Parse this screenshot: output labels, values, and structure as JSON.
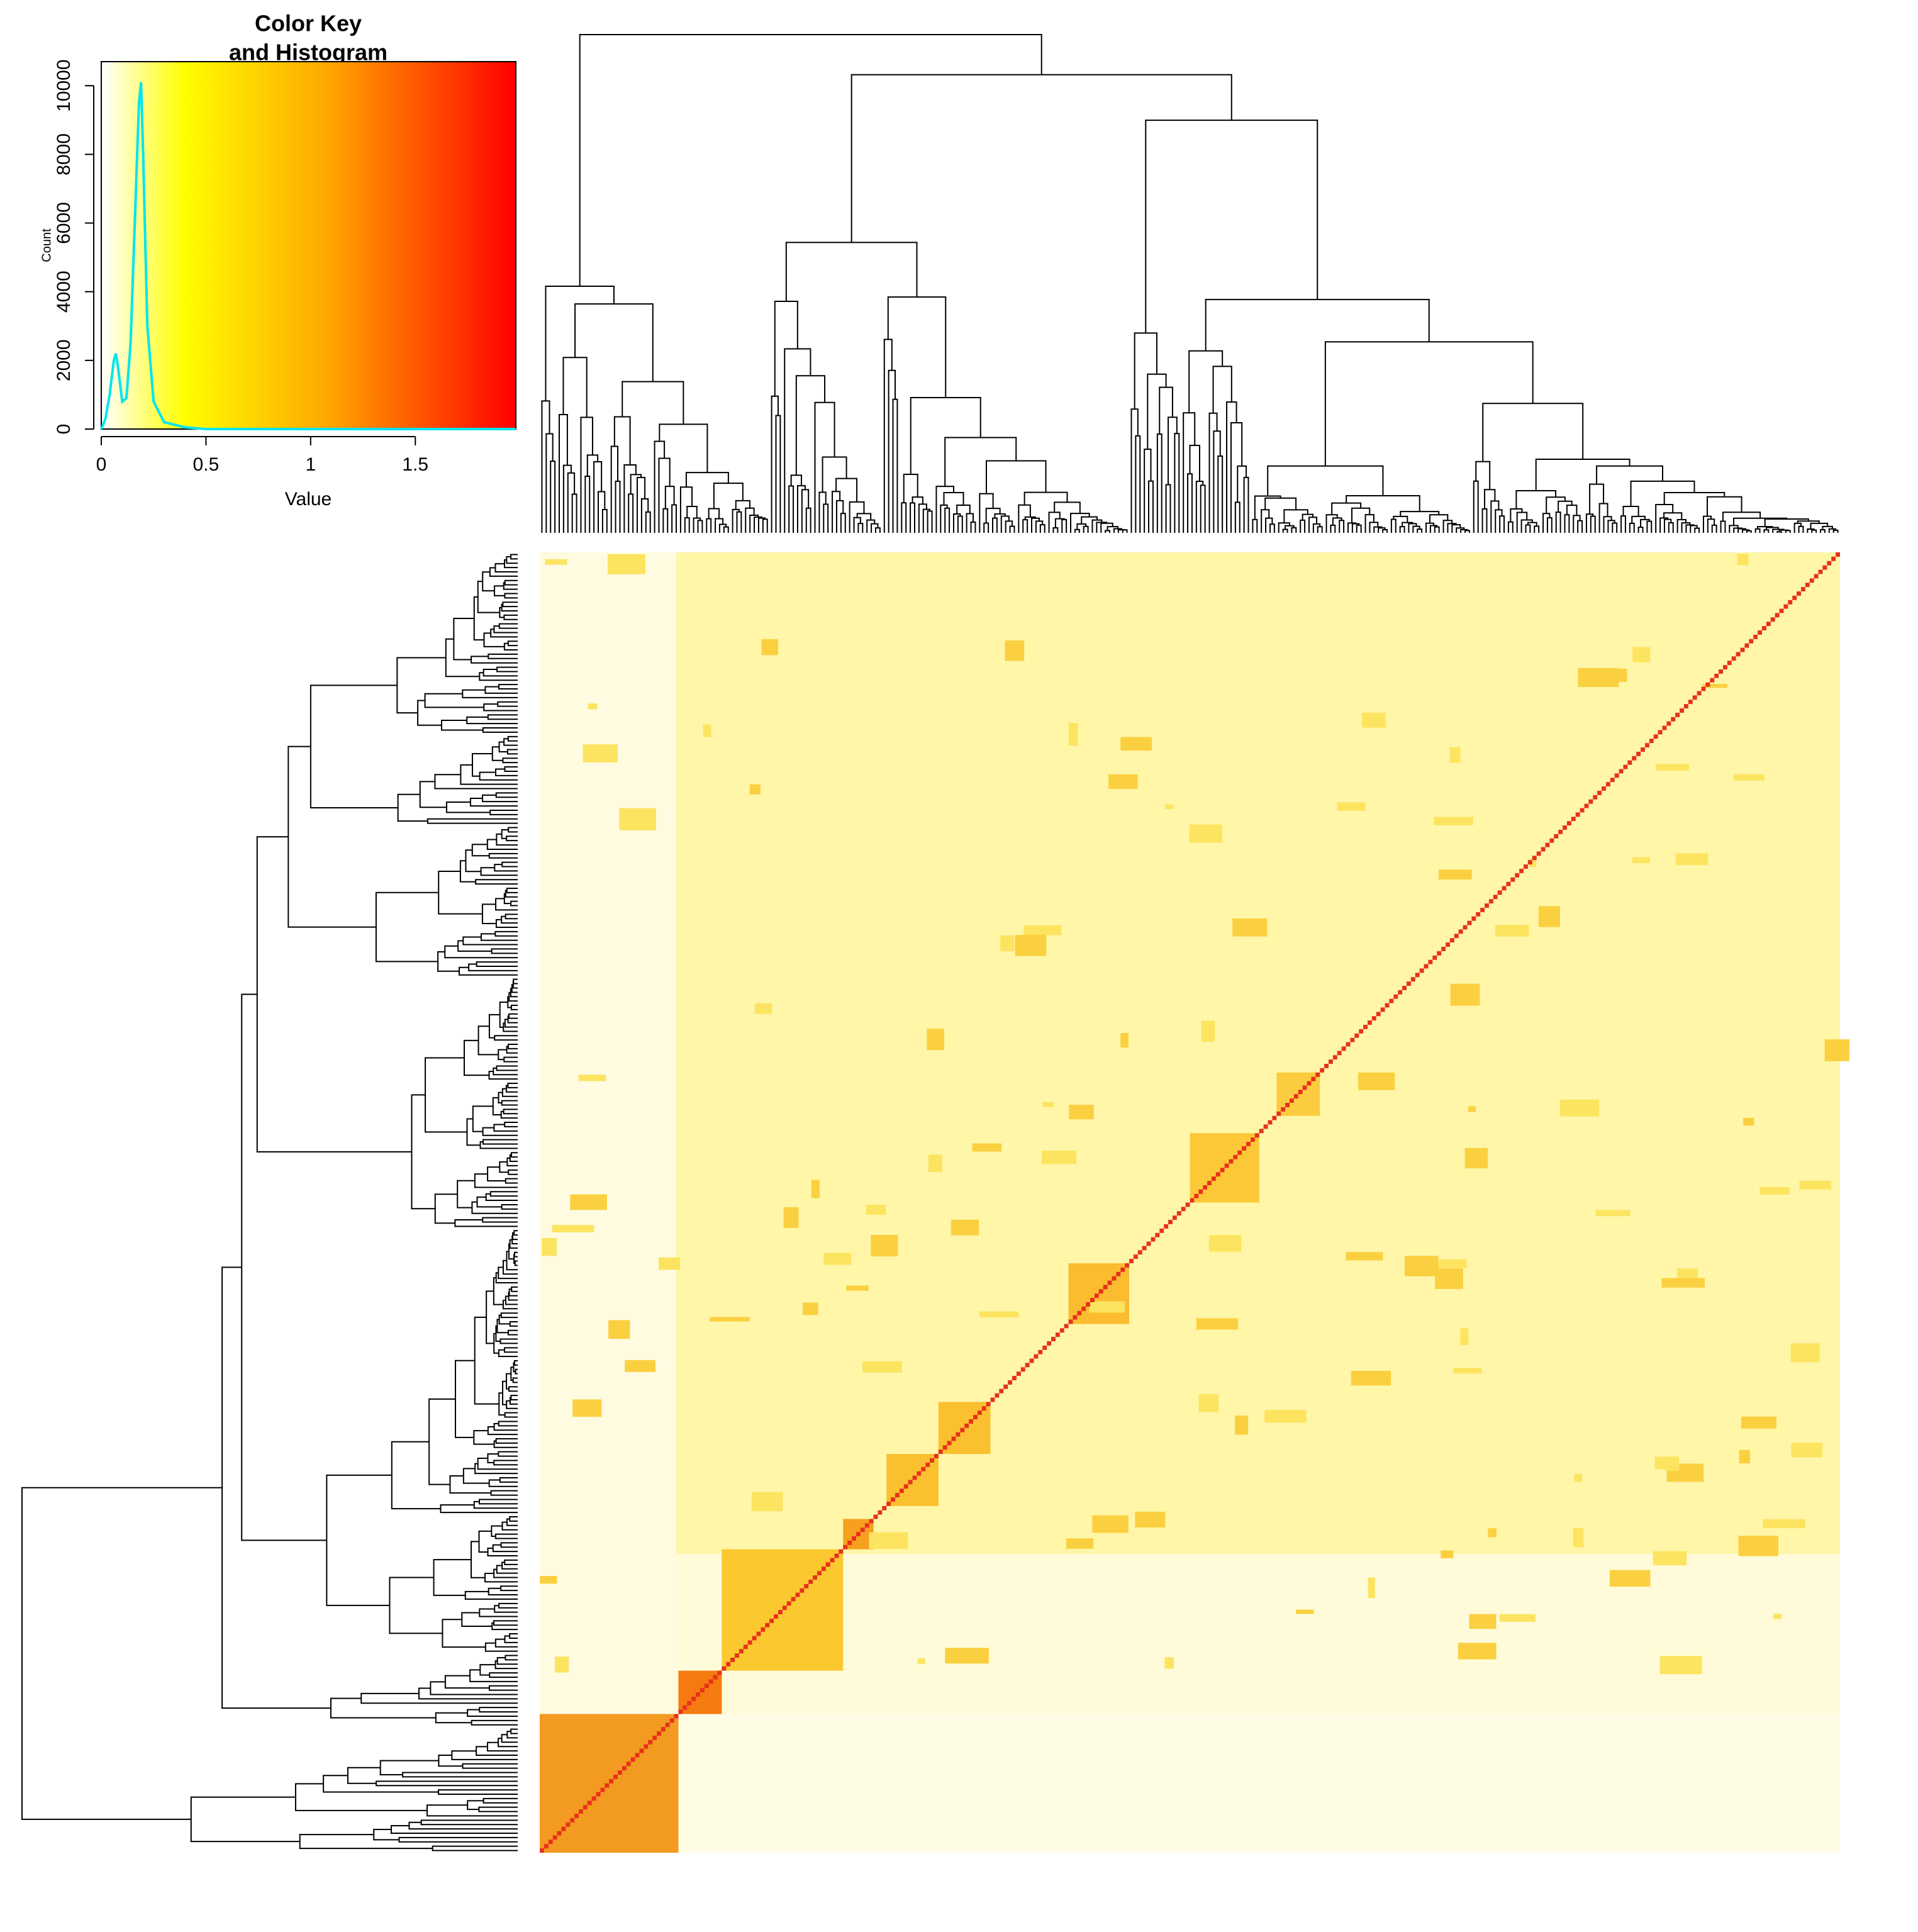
{
  "chart_data": {
    "type": "line",
    "title": [
      "Color Key",
      "and Histogram"
    ],
    "x_label": "Value",
    "y_label": "Count",
    "colorscale": [
      "#ffffff",
      "#ffff00",
      "#ffa500",
      "#ff0000"
    ],
    "x": [
      0,
      0.02,
      0.04,
      0.06,
      0.07,
      0.08,
      0.1,
      0.12,
      0.14,
      0.16,
      0.18,
      0.19,
      0.2,
      0.22,
      0.25,
      0.3,
      0.4,
      0.5,
      1,
      1.5,
      1.98
    ],
    "series": [
      {
        "name": "Count",
        "color": "#00e5ee",
        "values": [
          0,
          300,
          1000,
          2000,
          2200,
          1800,
          800,
          900,
          2500,
          6000,
          9500,
          10100,
          8000,
          3000,
          800,
          200,
          50,
          0,
          0,
          0,
          0
        ]
      }
    ],
    "xlim": [
      0,
      1.98
    ],
    "ylim": [
      0,
      10700
    ],
    "xticks": [
      0,
      0.5,
      1,
      1.5
    ],
    "yticks": [
      0,
      2000,
      4000,
      6000,
      8000,
      10000
    ]
  }
}
